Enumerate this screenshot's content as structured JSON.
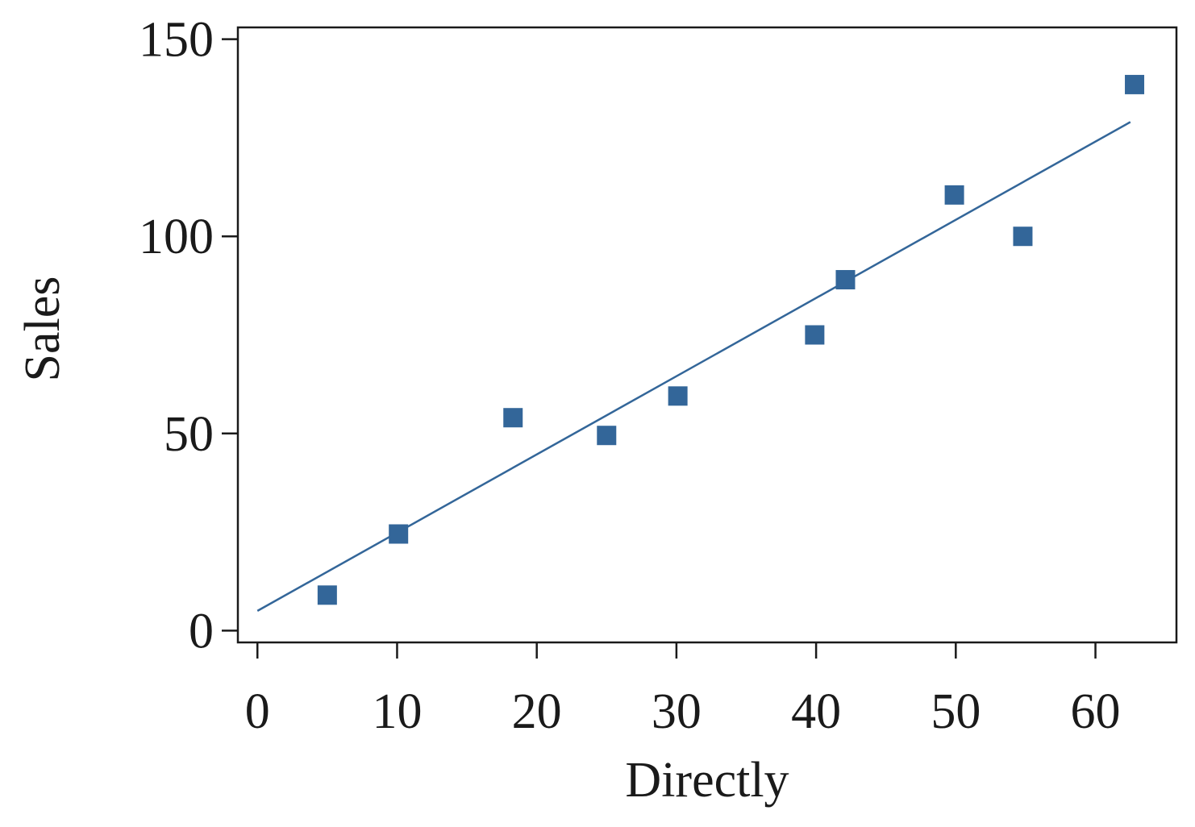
{
  "chart_data": {
    "type": "scatter",
    "title": "",
    "xlabel": "Directly",
    "ylabel": "Sales",
    "xlim": [
      -1.4,
      65.8
    ],
    "ylim": [
      -3,
      153
    ],
    "xticks": [
      0,
      10,
      20,
      30,
      40,
      50,
      60
    ],
    "yticks": [
      0,
      50,
      100,
      150
    ],
    "grid": false,
    "legend": "none",
    "series": [
      {
        "type": "scatter",
        "marker": "square",
        "color": "#336699",
        "x": [
          5,
          10.1,
          18.3,
          25,
          30.1,
          39.9,
          42.1,
          49.9,
          54.8,
          62.8
        ],
        "y": [
          9,
          24.5,
          54,
          49.5,
          59.5,
          75,
          89,
          110.5,
          100,
          138.5
        ]
      },
      {
        "type": "line",
        "color": "#336699",
        "x": [
          0,
          62.5
        ],
        "y": [
          5,
          129
        ]
      }
    ]
  }
}
